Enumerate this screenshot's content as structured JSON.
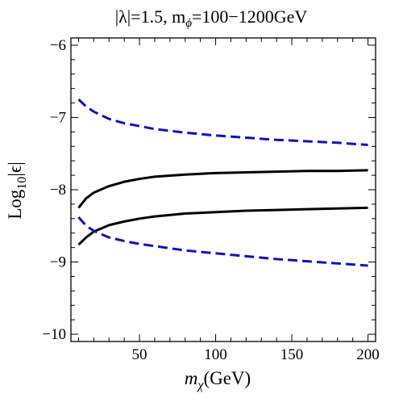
{
  "chart_data": {
    "type": "line",
    "title": "|λ|=1.5, m",
    "title_sub": "ϕ",
    "title_tail": "=100−1200GeV",
    "xlabel": "m",
    "xlabel_sub": "χ",
    "xlabel_tail": "(GeV)",
    "ylabel": "Log",
    "ylabel_sub": "10",
    "ylabel_tail": "|ϵ|",
    "xlim": [
      5,
      205
    ],
    "ylim": [
      -10.1,
      -5.9
    ],
    "xticks": [
      50,
      100,
      150,
      200
    ],
    "xtick_labels": [
      "50",
      "100",
      "150",
      "200"
    ],
    "yticks": [
      -10,
      -9,
      -8,
      -7,
      -6
    ],
    "ytick_labels": [
      "−10",
      "−9",
      "−8",
      "−7",
      "−6"
    ],
    "x_minor_step": 10,
    "y_minor_step": 0.2,
    "grid": false,
    "series": [
      {
        "style": "dashed",
        "color": "#1010c8",
        "x": [
          10,
          15,
          20,
          30,
          40,
          50,
          60,
          80,
          100,
          120,
          140,
          160,
          180,
          200
        ],
        "y": [
          -6.75,
          -6.85,
          -6.92,
          -7.02,
          -7.08,
          -7.12,
          -7.16,
          -7.21,
          -7.25,
          -7.28,
          -7.31,
          -7.33,
          -7.35,
          -7.38
        ]
      },
      {
        "style": "solid",
        "color": "#000000",
        "x": [
          10,
          15,
          20,
          30,
          40,
          50,
          60,
          80,
          100,
          120,
          140,
          160,
          180,
          200
        ],
        "y": [
          -8.25,
          -8.12,
          -8.04,
          -7.95,
          -7.89,
          -7.85,
          -7.82,
          -7.79,
          -7.77,
          -7.76,
          -7.75,
          -7.74,
          -7.74,
          -7.73
        ]
      },
      {
        "style": "solid",
        "color": "#000000",
        "x": [
          10,
          15,
          20,
          30,
          40,
          50,
          60,
          80,
          100,
          120,
          140,
          160,
          180,
          200
        ],
        "y": [
          -8.76,
          -8.66,
          -8.58,
          -8.49,
          -8.44,
          -8.4,
          -8.37,
          -8.33,
          -8.31,
          -8.29,
          -8.28,
          -8.27,
          -8.26,
          -8.25
        ]
      },
      {
        "style": "dashed",
        "color": "#1010c8",
        "x": [
          10,
          15,
          20,
          30,
          40,
          50,
          60,
          80,
          100,
          120,
          140,
          160,
          180,
          200
        ],
        "y": [
          -8.38,
          -8.5,
          -8.57,
          -8.66,
          -8.71,
          -8.75,
          -8.78,
          -8.84,
          -8.88,
          -8.92,
          -8.96,
          -8.99,
          -9.02,
          -9.05
        ]
      }
    ]
  }
}
